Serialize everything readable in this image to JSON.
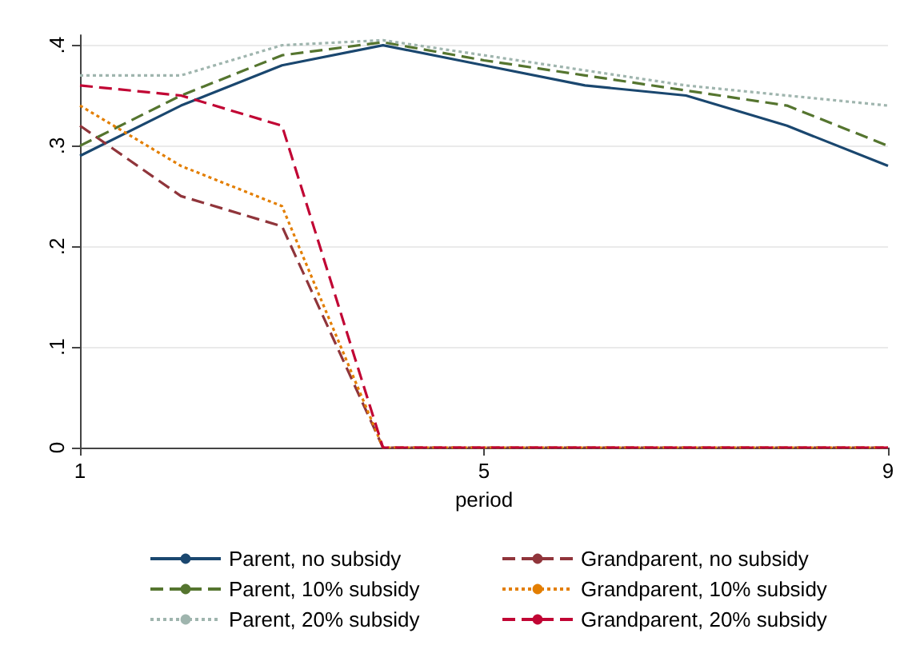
{
  "chart_data": {
    "type": "line",
    "xlabel": "period",
    "x": [
      1,
      2,
      3,
      4,
      5,
      6,
      7,
      8,
      9
    ],
    "xlim": [
      1,
      9
    ],
    "xticks": [
      1,
      5,
      9
    ],
    "ylim": [
      0,
      0.41
    ],
    "yticks": [
      {
        "value": 0,
        "label": "0"
      },
      {
        "value": 0.1,
        "label": ".1"
      },
      {
        "value": 0.2,
        "label": ".2"
      },
      {
        "value": 0.3,
        "label": ".3"
      },
      {
        "value": 0.4,
        "label": ".4"
      }
    ],
    "grid": "y",
    "legend": "bottom",
    "marker": "none",
    "series": [
      {
        "name": "Parent, no subsidy",
        "color": "#1a476f",
        "line_style": "solid",
        "values": [
          0.29,
          0.34,
          0.38,
          0.4,
          0.38,
          0.36,
          0.35,
          0.32,
          0.28
        ]
      },
      {
        "name": "Grandparent, no subsidy",
        "color": "#90353b",
        "line_style": "dashed",
        "values": [
          0.32,
          0.25,
          0.22,
          0,
          0,
          0,
          0,
          0,
          0
        ]
      },
      {
        "name": "Parent, 10% subsidy",
        "color": "#55752f",
        "line_style": "dashed",
        "values": [
          0.3,
          0.35,
          0.39,
          0.403,
          0.385,
          0.37,
          0.355,
          0.34,
          0.3
        ]
      },
      {
        "name": "Grandparent, 10% subsidy",
        "color": "#e37e00",
        "line_style": "dotted",
        "values": [
          0.34,
          0.28,
          0.24,
          0,
          0,
          0,
          0,
          0,
          0
        ]
      },
      {
        "name": "Parent, 20% subsidy",
        "color": "#9fb5ae",
        "line_style": "dotted",
        "values": [
          0.37,
          0.37,
          0.4,
          0.405,
          0.39,
          0.375,
          0.36,
          0.35,
          0.34
        ]
      },
      {
        "name": "Grandparent, 20% subsidy",
        "color": "#c10534",
        "line_style": "dashed",
        "values": [
          0.36,
          0.35,
          0.32,
          0,
          0,
          0,
          0,
          0,
          0
        ]
      }
    ]
  }
}
